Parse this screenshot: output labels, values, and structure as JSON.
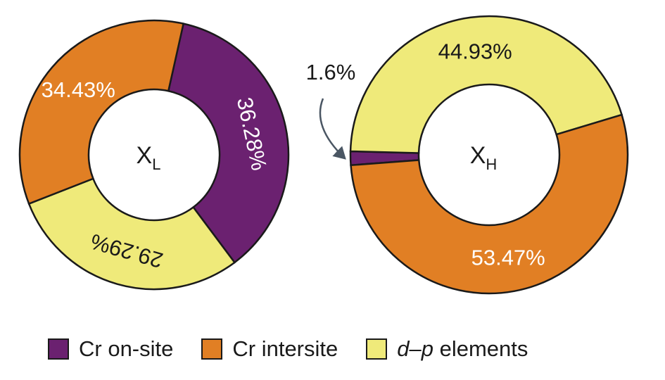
{
  "chart_data": {
    "type": "pie",
    "variant": "donut",
    "series_names": [
      "Cr on-site",
      "Cr intersite",
      "d–p elements"
    ],
    "colors": {
      "cr_onsite": "#6b2170",
      "cr_intersite": "#e17f24",
      "dp_elements": "#efea7a",
      "text_dark": "#1a1a1a",
      "text_light": "#ffffff",
      "arrow": "#4a5663"
    },
    "charts": [
      {
        "center_label": "X",
        "center_subscript": "L",
        "slices": [
          {
            "name": "Cr on-site",
            "key": "cr_onsite",
            "value": 36.28,
            "label": "36.28%"
          },
          {
            "name": "Cr intersite",
            "key": "cr_intersite",
            "value": 34.43,
            "label": "34.43%"
          },
          {
            "name": "d–p elements",
            "key": "dp_elements",
            "value": 29.29,
            "label": "29.29%"
          }
        ]
      },
      {
        "center_label": "X",
        "center_subscript": "H",
        "slices": [
          {
            "name": "Cr on-site",
            "key": "cr_onsite",
            "value": 1.6,
            "label": "1.6%"
          },
          {
            "name": "Cr intersite",
            "key": "cr_intersite",
            "value": 53.47,
            "label": "53.47%"
          },
          {
            "name": "d–p elements",
            "key": "dp_elements",
            "value": 44.93,
            "label": "44.93%"
          }
        ]
      }
    ],
    "legend": {
      "placement": "bottom",
      "items": [
        {
          "key": "cr_onsite",
          "label": "Cr on-site"
        },
        {
          "key": "cr_intersite",
          "label": "Cr intersite"
        },
        {
          "key": "dp_elements",
          "label_italic_1": "d",
          "label_dash": "–",
          "label_italic_2": "p",
          "label_rest": " elements"
        }
      ]
    }
  }
}
